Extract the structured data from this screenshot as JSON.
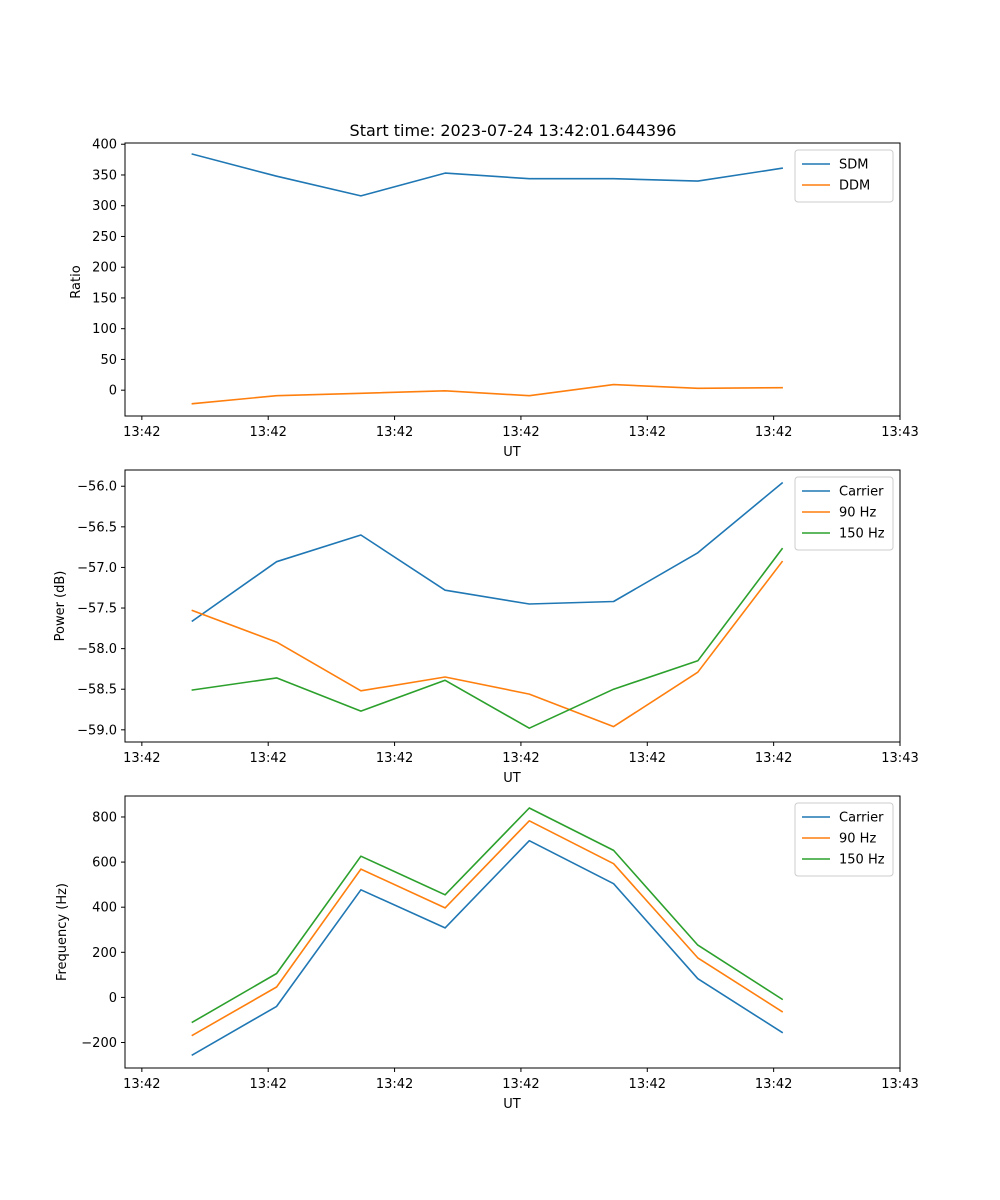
{
  "figure": {
    "title": "Start time: 2023-07-24 13:42:01.644396"
  },
  "colors": {
    "blue": "#1f77b4",
    "orange": "#ff7f0e",
    "green": "#2ca02c"
  },
  "chart_data": [
    {
      "type": "line",
      "title": "Start time: 2023-07-24 13:42:01.644396",
      "xlabel": "UT",
      "ylabel": "Ratio",
      "x": [
        1,
        2,
        3,
        4,
        5,
        6,
        7,
        8
      ],
      "xlim": [
        0.2,
        9.4
      ],
      "xticks": [
        0.4,
        1.9,
        3.4,
        4.9,
        6.4,
        7.9,
        9.4
      ],
      "xticklabels": [
        "13:42",
        "13:42",
        "13:42",
        "13:42",
        "13:42",
        "13:42",
        "13:43"
      ],
      "ylim": [
        -42,
        402
      ],
      "yticks": [
        0,
        50,
        100,
        150,
        200,
        250,
        300,
        350,
        400
      ],
      "yticklabels": [
        "0",
        "50",
        "100",
        "150",
        "200",
        "250",
        "300",
        "350",
        "400"
      ],
      "legend_position": "top-right",
      "series": [
        {
          "name": "SDM",
          "color": "#1f77b4",
          "values": [
            384,
            348,
            316,
            353,
            344,
            344,
            340,
            361
          ]
        },
        {
          "name": "DDM",
          "color": "#ff7f0e",
          "values": [
            -22,
            -9,
            -5,
            -1,
            -9,
            9,
            3,
            4
          ]
        }
      ]
    },
    {
      "type": "line",
      "title": "",
      "xlabel": "UT",
      "ylabel": "Power (dB)",
      "x": [
        1,
        2,
        3,
        4,
        5,
        6,
        7,
        8
      ],
      "xlim": [
        0.2,
        9.4
      ],
      "xticks": [
        0.4,
        1.9,
        3.4,
        4.9,
        6.4,
        7.9,
        9.4
      ],
      "xticklabels": [
        "13:42",
        "13:42",
        "13:42",
        "13:42",
        "13:42",
        "13:42",
        "13:43"
      ],
      "ylim": [
        -59.15,
        -55.8
      ],
      "yticks": [
        -59.0,
        -58.5,
        -58.0,
        -57.5,
        -57.0,
        -56.5,
        -56.0
      ],
      "yticklabels": [
        "−59.0",
        "−58.5",
        "−58.0",
        "−57.5",
        "−57.0",
        "−56.5",
        "−56.0"
      ],
      "legend_position": "top-right",
      "series": [
        {
          "name": "Carrier",
          "color": "#1f77b4",
          "values": [
            -57.66,
            -56.93,
            -56.6,
            -57.28,
            -57.45,
            -57.42,
            -56.82,
            -55.96
          ]
        },
        {
          "name": "90 Hz",
          "color": "#ff7f0e",
          "values": [
            -57.53,
            -57.92,
            -58.52,
            -58.35,
            -58.56,
            -58.96,
            -58.29,
            -56.93
          ]
        },
        {
          "name": "150 Hz",
          "color": "#2ca02c",
          "values": [
            -58.51,
            -58.36,
            -58.77,
            -58.39,
            -58.98,
            -58.5,
            -58.15,
            -56.77
          ]
        }
      ]
    },
    {
      "type": "line",
      "title": "",
      "xlabel": "UT",
      "ylabel": "Frequency (Hz)",
      "x": [
        1,
        2,
        3,
        4,
        5,
        6,
        7,
        8
      ],
      "xlim": [
        0.2,
        9.4
      ],
      "xticks": [
        0.4,
        1.9,
        3.4,
        4.9,
        6.4,
        7.9,
        9.4
      ],
      "xticklabels": [
        "13:42",
        "13:42",
        "13:42",
        "13:42",
        "13:42",
        "13:42",
        "13:43"
      ],
      "ylim": [
        -313,
        893
      ],
      "yticks": [
        -200,
        0,
        200,
        400,
        600,
        800
      ],
      "yticklabels": [
        "−200",
        "0",
        "200",
        "400",
        "600",
        "800"
      ],
      "legend_position": "top-right",
      "series": [
        {
          "name": "Carrier",
          "color": "#1f77b4",
          "values": [
            -255,
            -40,
            477,
            308,
            695,
            504,
            83,
            -155
          ]
        },
        {
          "name": "90 Hz",
          "color": "#ff7f0e",
          "values": [
            -168,
            46,
            569,
            397,
            783,
            593,
            175,
            -63
          ]
        },
        {
          "name": "150 Hz",
          "color": "#2ca02c",
          "values": [
            -110,
            106,
            626,
            455,
            840,
            652,
            232,
            -8
          ]
        }
      ]
    }
  ]
}
